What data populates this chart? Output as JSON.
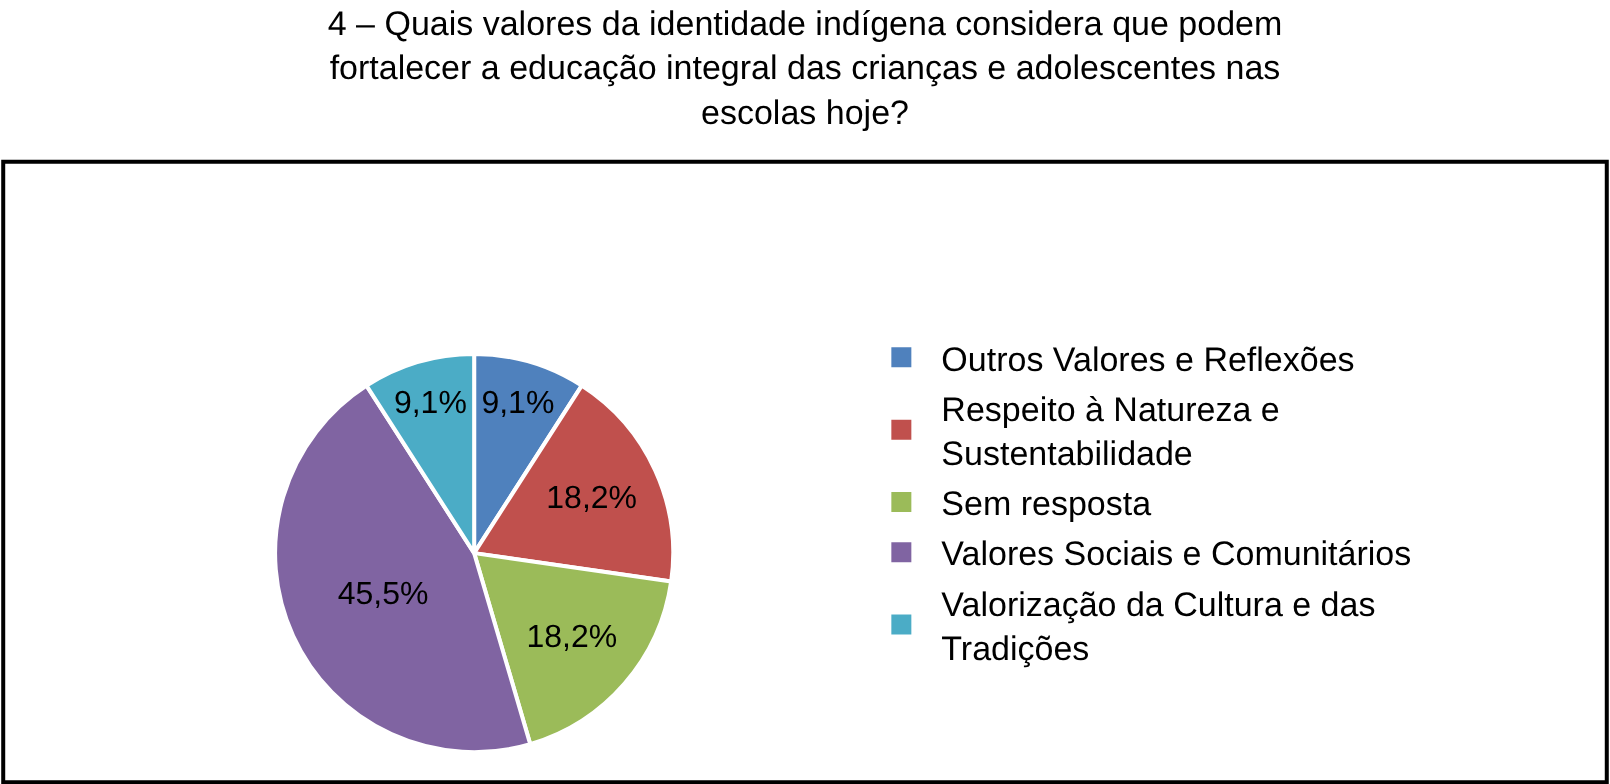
{
  "chart_data": {
    "type": "pie",
    "title": "4 – Quais valores da identidade indígena considera que podem fortalecer a educação integral das crianças e adolescentes nas escolas hoje?",
    "categories": [
      "Outros Valores e Reflexões",
      "Respeito à Natureza e Sustentabilidade",
      "Sem resposta",
      "Valores Sociais e Comunitários",
      "Valorização da Cultura e das Tradições"
    ],
    "values": [
      9.1,
      18.2,
      18.2,
      45.5,
      9.1
    ],
    "value_labels": [
      "9,1%",
      "18,2%",
      "18,2%",
      "45,5%",
      "9,1%"
    ],
    "colors": [
      "#4f81bd",
      "#c0504d",
      "#9bbb59",
      "#8064a2",
      "#4bacc6"
    ],
    "legend": "right"
  }
}
